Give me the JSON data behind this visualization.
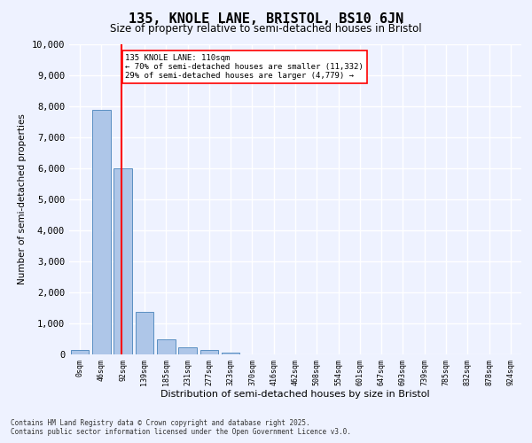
{
  "title_line1": "135, KNOLE LANE, BRISTOL, BS10 6JN",
  "title_line2": "Size of property relative to semi-detached houses in Bristol",
  "xlabel": "Distribution of semi-detached houses by size in Bristol",
  "ylabel": "Number of semi-detached properties",
  "bin_labels": [
    "0sqm",
    "46sqm",
    "92sqm",
    "139sqm",
    "185sqm",
    "231sqm",
    "277sqm",
    "323sqm",
    "370sqm",
    "416sqm",
    "462sqm",
    "508sqm",
    "554sqm",
    "601sqm",
    "647sqm",
    "693sqm",
    "739sqm",
    "785sqm",
    "832sqm",
    "878sqm",
    "924sqm"
  ],
  "bar_values": [
    150,
    7900,
    6000,
    1380,
    480,
    220,
    130,
    60,
    0,
    0,
    0,
    0,
    0,
    0,
    0,
    0,
    0,
    0,
    0,
    0,
    0
  ],
  "bar_color": "#aec6e8",
  "bar_edge_color": "#5a8fc2",
  "annotation_title": "135 KNOLE LANE: 110sqm",
  "annotation_line1": "← 70% of semi-detached houses are smaller (11,332)",
  "annotation_line2": "29% of semi-detached houses are larger (4,779) →",
  "ylim": [
    0,
    10000
  ],
  "yticks": [
    0,
    1000,
    2000,
    3000,
    4000,
    5000,
    6000,
    7000,
    8000,
    9000,
    10000
  ],
  "background_color": "#eef2ff",
  "grid_color": "#ffffff",
  "footer_line1": "Contains HM Land Registry data © Crown copyright and database right 2025.",
  "footer_line2": "Contains public sector information licensed under the Open Government Licence v3.0.",
  "red_line_x": 1.93
}
